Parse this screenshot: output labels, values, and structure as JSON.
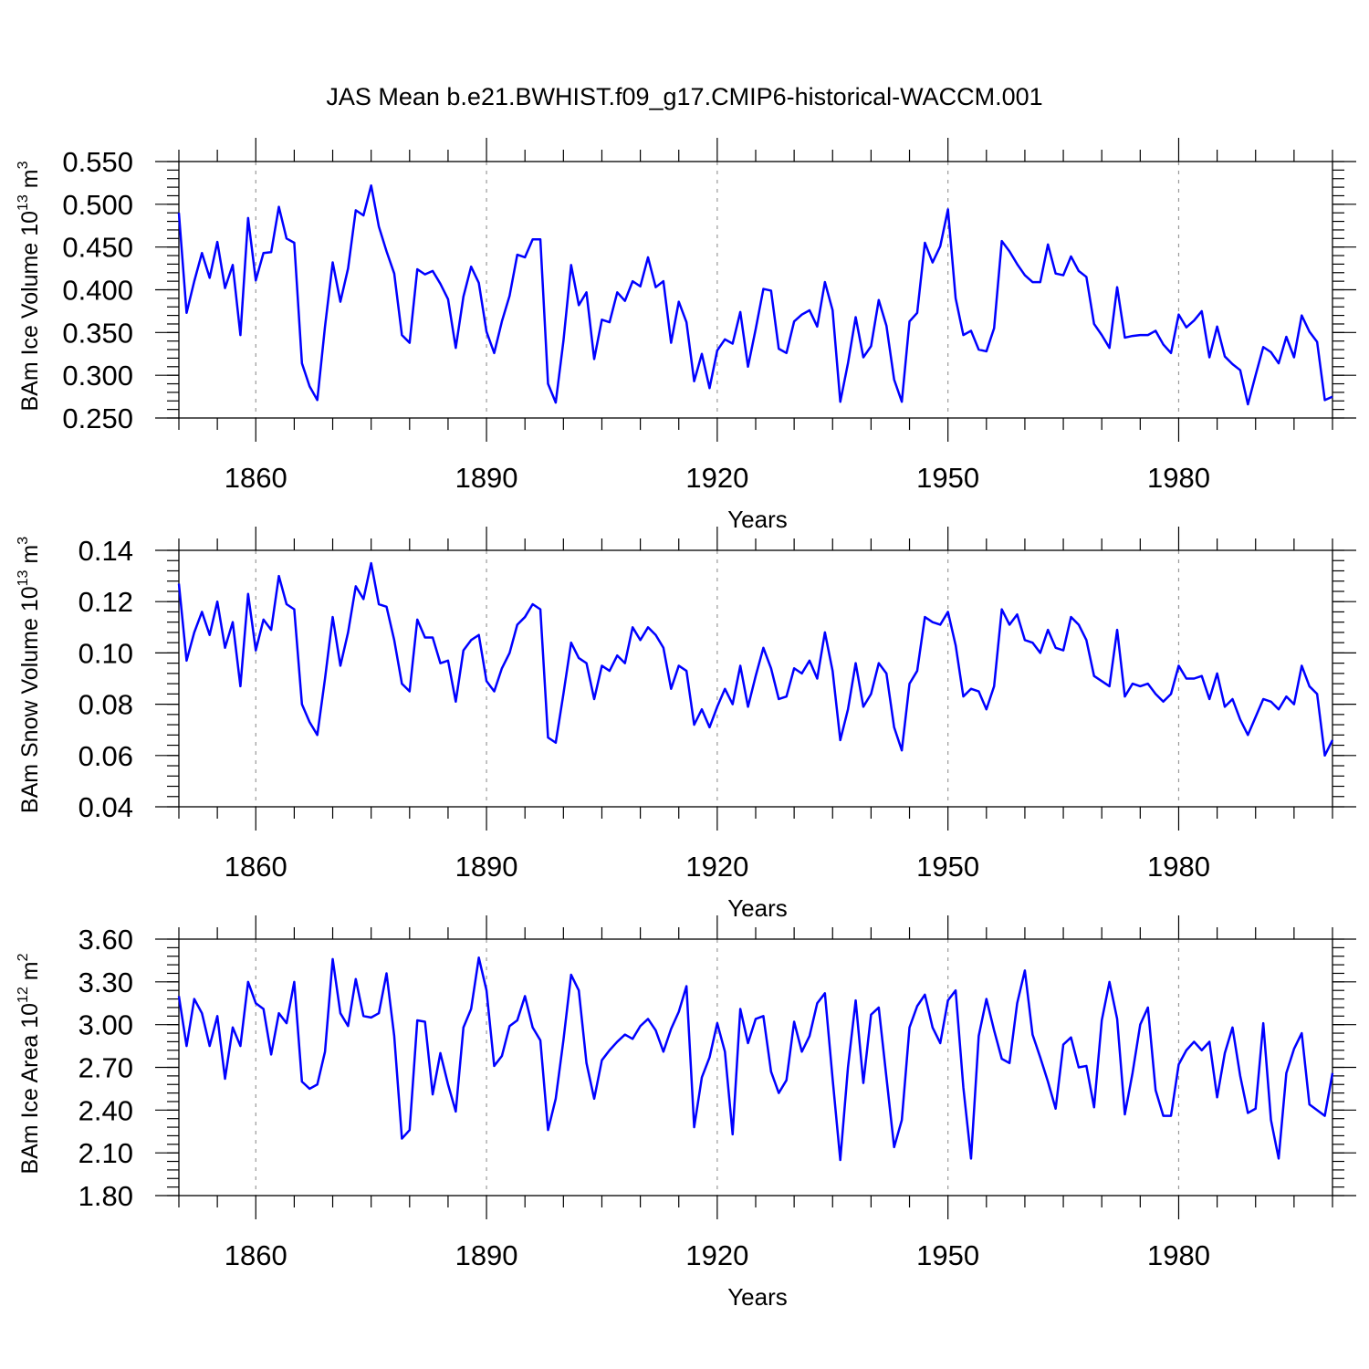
{
  "figure_title": "JAS Mean b.e21.BWHIST.f09_g17.CMIP6-historical-WACCM.001",
  "colors": {
    "series": "#0000ff",
    "axis": "#000000",
    "grid": "#999999"
  },
  "chart_data": [
    {
      "type": "line",
      "title": "JAS Mean b.e21.BWHIST.f09_g17.CMIP6-historical-WACCM.001",
      "xlabel": "Years",
      "ylabel": {
        "text": "BAm Ice Volume 10",
        "sup": "13",
        "unit": " m",
        "unit_sup": "3"
      },
      "xlim": [
        1850,
        2000
      ],
      "ylim": [
        0.25,
        0.55
      ],
      "x_ticks": [
        1860,
        1890,
        1920,
        1950,
        1980
      ],
      "x_tick_labels": [
        "1860",
        "1890",
        "1920",
        "1950",
        "1980"
      ],
      "y_ticks": [
        0.25,
        0.3,
        0.35,
        0.4,
        0.45,
        0.5,
        0.55
      ],
      "y_tick_labels": [
        "0.250",
        "0.300",
        "0.350",
        "0.400",
        "0.450",
        "0.500",
        "0.550"
      ],
      "y_minor_step": 0.01,
      "grid_x": true,
      "x_start": 1850,
      "series": [
        {
          "name": "BAm Ice Volume",
          "values": [
            0.49,
            0.373,
            0.41,
            0.443,
            0.414,
            0.456,
            0.402,
            0.429,
            0.347,
            0.484,
            0.411,
            0.443,
            0.444,
            0.497,
            0.46,
            0.455,
            0.314,
            0.287,
            0.271,
            0.357,
            0.432,
            0.386,
            0.425,
            0.493,
            0.487,
            0.522,
            0.474,
            0.445,
            0.419,
            0.347,
            0.338,
            0.424,
            0.418,
            0.422,
            0.407,
            0.389,
            0.332,
            0.392,
            0.427,
            0.408,
            0.351,
            0.326,
            0.363,
            0.393,
            0.441,
            0.438,
            0.459,
            0.459,
            0.29,
            0.268,
            0.34,
            0.429,
            0.382,
            0.397,
            0.319,
            0.365,
            0.362,
            0.397,
            0.387,
            0.41,
            0.404,
            0.438,
            0.403,
            0.41,
            0.338,
            0.386,
            0.362,
            0.293,
            0.325,
            0.285,
            0.329,
            0.342,
            0.337,
            0.374,
            0.31,
            0.354,
            0.401,
            0.399,
            0.331,
            0.326,
            0.363,
            0.371,
            0.376,
            0.357,
            0.409,
            0.376,
            0.269,
            0.314,
            0.368,
            0.321,
            0.334,
            0.388,
            0.358,
            0.295,
            0.269,
            0.363,
            0.373,
            0.455,
            0.432,
            0.451,
            0.494,
            0.39,
            0.347,
            0.352,
            0.33,
            0.328,
            0.355,
            0.457,
            0.445,
            0.43,
            0.417,
            0.409,
            0.409,
            0.453,
            0.419,
            0.417,
            0.439,
            0.422,
            0.415,
            0.36,
            0.347,
            0.332,
            0.403,
            0.344,
            0.346,
            0.347,
            0.347,
            0.352,
            0.336,
            0.326,
            0.371,
            0.356,
            0.364,
            0.375,
            0.321,
            0.357,
            0.322,
            0.313,
            0.306,
            0.266,
            0.3,
            0.333,
            0.327,
            0.314,
            0.345,
            0.321,
            0.37,
            0.351,
            0.339,
            0.271,
            0.275
          ]
        }
      ]
    },
    {
      "type": "line",
      "title": "",
      "xlabel": "Years",
      "ylabel": {
        "text": "BAm Snow Volume 10",
        "sup": "13",
        "unit": " m",
        "unit_sup": "3"
      },
      "xlim": [
        1850,
        2000
      ],
      "ylim": [
        0.04,
        0.14
      ],
      "x_ticks": [
        1860,
        1890,
        1920,
        1950,
        1980
      ],
      "x_tick_labels": [
        "1860",
        "1890",
        "1920",
        "1950",
        "1980"
      ],
      "y_ticks": [
        0.04,
        0.06,
        0.08,
        0.1,
        0.12,
        0.14
      ],
      "y_tick_labels": [
        "0.04",
        "0.06",
        "0.08",
        "0.10",
        "0.12",
        "0.14"
      ],
      "y_minor_step": 0.004,
      "grid_x": true,
      "x_start": 1850,
      "series": [
        {
          "name": "BAm Snow Volume",
          "values": [
            0.127,
            0.097,
            0.108,
            0.116,
            0.107,
            0.12,
            0.102,
            0.112,
            0.087,
            0.123,
            0.101,
            0.113,
            0.109,
            0.13,
            0.119,
            0.117,
            0.08,
            0.073,
            0.068,
            0.09,
            0.114,
            0.095,
            0.108,
            0.126,
            0.121,
            0.135,
            0.119,
            0.118,
            0.105,
            0.088,
            0.085,
            0.113,
            0.106,
            0.106,
            0.096,
            0.097,
            0.081,
            0.101,
            0.105,
            0.107,
            0.089,
            0.085,
            0.094,
            0.1,
            0.111,
            0.114,
            0.119,
            0.117,
            0.067,
            0.065,
            0.084,
            0.104,
            0.098,
            0.096,
            0.082,
            0.095,
            0.093,
            0.099,
            0.096,
            0.11,
            0.105,
            0.11,
            0.107,
            0.102,
            0.086,
            0.095,
            0.093,
            0.072,
            0.078,
            0.071,
            0.079,
            0.086,
            0.08,
            0.095,
            0.079,
            0.091,
            0.102,
            0.094,
            0.082,
            0.083,
            0.094,
            0.092,
            0.097,
            0.09,
            0.108,
            0.093,
            0.066,
            0.078,
            0.096,
            0.079,
            0.084,
            0.096,
            0.092,
            0.071,
            0.062,
            0.088,
            0.093,
            0.114,
            0.112,
            0.111,
            0.116,
            0.103,
            0.083,
            0.086,
            0.085,
            0.078,
            0.087,
            0.117,
            0.111,
            0.115,
            0.105,
            0.104,
            0.1,
            0.109,
            0.102,
            0.101,
            0.114,
            0.111,
            0.105,
            0.091,
            0.089,
            0.087,
            0.109,
            0.083,
            0.088,
            0.087,
            0.088,
            0.084,
            0.081,
            0.084,
            0.095,
            0.09,
            0.09,
            0.091,
            0.082,
            0.092,
            0.079,
            0.082,
            0.074,
            0.068,
            0.075,
            0.082,
            0.081,
            0.078,
            0.083,
            0.08,
            0.095,
            0.087,
            0.084,
            0.06,
            0.066
          ]
        }
      ]
    },
    {
      "type": "line",
      "title": "",
      "xlabel": "Years",
      "ylabel": {
        "text": "BAm Ice Area 10",
        "sup": "12",
        "unit": " m",
        "unit_sup": "2"
      },
      "xlim": [
        1850,
        2000
      ],
      "ylim": [
        1.8,
        3.6
      ],
      "x_ticks": [
        1860,
        1890,
        1920,
        1950,
        1980
      ],
      "x_tick_labels": [
        "1860",
        "1890",
        "1920",
        "1950",
        "1980"
      ],
      "y_ticks": [
        1.8,
        2.1,
        2.4,
        2.7,
        3.0,
        3.3,
        3.6
      ],
      "y_tick_labels": [
        "1.80",
        "2.10",
        "2.40",
        "2.70",
        "3.00",
        "3.30",
        "3.60"
      ],
      "y_minor_step": 0.06,
      "grid_x": true,
      "x_start": 1850,
      "series": [
        {
          "name": "BAm Ice Area",
          "values": [
            3.2,
            2.85,
            3.18,
            3.08,
            2.85,
            3.06,
            2.62,
            2.98,
            2.85,
            3.3,
            3.15,
            3.11,
            2.79,
            3.08,
            3.01,
            3.3,
            2.6,
            2.55,
            2.58,
            2.81,
            3.46,
            3.08,
            2.99,
            3.32,
            3.06,
            3.05,
            3.08,
            3.36,
            2.92,
            2.2,
            2.26,
            3.03,
            3.02,
            2.51,
            2.8,
            2.58,
            2.39,
            2.98,
            3.11,
            3.47,
            3.24,
            2.71,
            2.78,
            2.99,
            3.03,
            3.2,
            2.98,
            2.89,
            2.26,
            2.48,
            2.89,
            3.35,
            3.24,
            2.73,
            2.48,
            2.75,
            2.82,
            2.88,
            2.93,
            2.9,
            2.99,
            3.04,
            2.96,
            2.81,
            2.97,
            3.09,
            3.27,
            2.28,
            2.63,
            2.77,
            3.01,
            2.81,
            2.23,
            3.11,
            2.87,
            3.04,
            3.06,
            2.67,
            2.52,
            2.61,
            3.02,
            2.81,
            2.92,
            3.15,
            3.22,
            2.62,
            2.05,
            2.7,
            3.17,
            2.59,
            3.07,
            3.12,
            2.63,
            2.14,
            2.33,
            2.98,
            3.13,
            3.21,
            2.98,
            2.87,
            3.17,
            3.24,
            2.56,
            2.06,
            2.92,
            3.18,
            2.96,
            2.76,
            2.73,
            3.15,
            3.38,
            2.93,
            2.77,
            2.6,
            2.41,
            2.86,
            2.91,
            2.7,
            2.71,
            2.42,
            3.03,
            3.3,
            3.04,
            2.37,
            2.66,
            3.0,
            3.12,
            2.54,
            2.36,
            2.36,
            2.72,
            2.82,
            2.88,
            2.82,
            2.88,
            2.49,
            2.8,
            2.98,
            2.64,
            2.38,
            2.41,
            3.01,
            2.33,
            2.06,
            2.66,
            2.83,
            2.94,
            2.44,
            2.4,
            2.36,
            2.66
          ]
        }
      ]
    }
  ]
}
